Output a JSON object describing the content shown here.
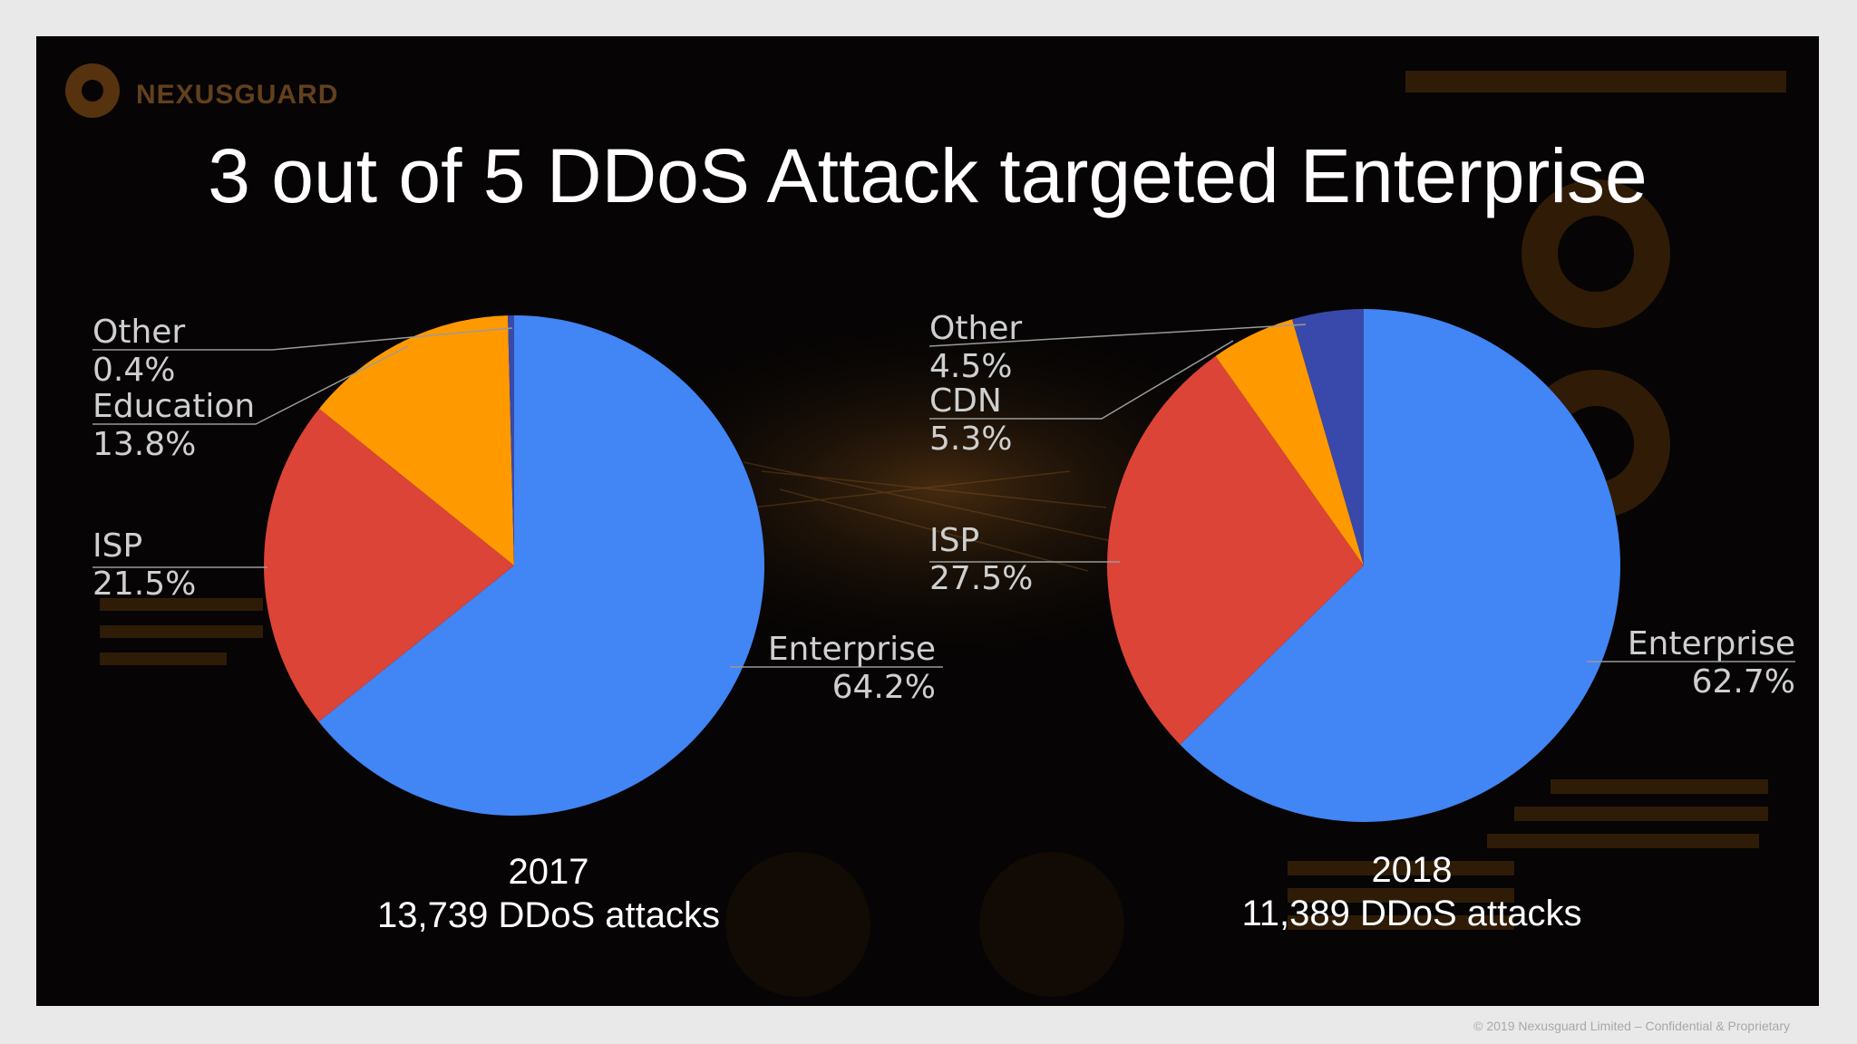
{
  "slide": {
    "brand": "NEXUSGUARD",
    "title": "3 out of 5 DDoS Attack targeted Enterprise",
    "footer": "© 2019 Nexusguard Limited – Confidential & Proprietary"
  },
  "chart_data": [
    {
      "type": "pie",
      "year": "2017",
      "subtitle": "13,739 DDoS attacks",
      "slices": [
        {
          "name": "Enterprise",
          "value": 64.2,
          "label": "64.2%",
          "color": "#4285f4"
        },
        {
          "name": "ISP",
          "value": 21.5,
          "label": "21.5%",
          "color": "#db4437"
        },
        {
          "name": "Education",
          "value": 13.8,
          "label": "13.8%",
          "color": "#ff9900"
        },
        {
          "name": "Other",
          "value": 0.4,
          "label": "0.4%",
          "color": "#3949ab"
        }
      ]
    },
    {
      "type": "pie",
      "year": "2018",
      "subtitle": "11,389 DDoS attacks",
      "slices": [
        {
          "name": "Enterprise",
          "value": 62.7,
          "label": "62.7%",
          "color": "#4285f4"
        },
        {
          "name": "ISP",
          "value": 27.5,
          "label": "27.5%",
          "color": "#db4437"
        },
        {
          "name": "CDN",
          "value": 5.3,
          "label": "5.3%",
          "color": "#ff9900"
        },
        {
          "name": "Other",
          "value": 4.5,
          "label": "4.5%",
          "color": "#3949ab"
        }
      ]
    }
  ]
}
